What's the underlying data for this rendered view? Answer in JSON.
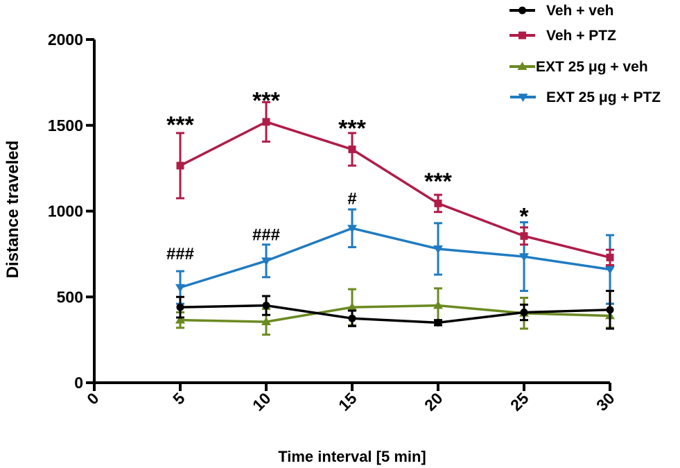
{
  "chart_data": {
    "type": "line",
    "title": "",
    "xlabel": "Time interval [5 min]",
    "ylabel": "Distance traveled",
    "x": [
      5,
      10,
      15,
      20,
      25,
      30
    ],
    "xlim": [
      0,
      30
    ],
    "ylim": [
      0,
      2000
    ],
    "xticks": [
      0,
      5,
      10,
      15,
      20,
      25,
      30
    ],
    "yticks": [
      0,
      500,
      1000,
      1500,
      2000
    ],
    "xtick_labels": [
      "0",
      "5",
      "10",
      "15",
      "20",
      "25",
      "30"
    ],
    "ytick_labels": [
      "0",
      "500",
      "1000",
      "1500",
      "2000"
    ],
    "grid": false,
    "legend_position": "top-right",
    "series": [
      {
        "name": "Veh + veh",
        "color": "#000000",
        "marker": "circle",
        "values": [
          440,
          450,
          375,
          350,
          410,
          425
        ],
        "errors": [
          60,
          55,
          45,
          15,
          45,
          110
        ]
      },
      {
        "name": "Veh + PTZ",
        "color": "#b01c48",
        "marker": "square",
        "values": [
          1265,
          1520,
          1360,
          1045,
          855,
          730
        ],
        "errors": [
          190,
          115,
          95,
          50,
          50,
          45
        ]
      },
      {
        "name": "EXT 25 μg + veh",
        "color": "#6b8a21",
        "marker": "triangle-up",
        "values": [
          365,
          355,
          440,
          450,
          405,
          390
        ],
        "errors": [
          45,
          75,
          105,
          100,
          90,
          70
        ]
      },
      {
        "name": "EXT 25 μg + PTZ",
        "color": "#1f7bc1",
        "marker": "triangle-down",
        "values": [
          555,
          710,
          900,
          780,
          735,
          660
        ],
        "errors": [
          95,
          95,
          110,
          150,
          200,
          200
        ]
      }
    ],
    "annotations": [
      {
        "text": "***",
        "x": 5,
        "y": 1530
      },
      {
        "text": "***",
        "x": 10,
        "y": 1670
      },
      {
        "text": "***",
        "x": 15,
        "y": 1510
      },
      {
        "text": "***",
        "x": 20,
        "y": 1200
      },
      {
        "text": "*",
        "x": 25,
        "y": 995
      },
      {
        "text": "###",
        "x": 5,
        "y": 760
      },
      {
        "text": "###",
        "x": 10,
        "y": 870
      },
      {
        "text": "#",
        "x": 15,
        "y": 1080
      }
    ]
  }
}
